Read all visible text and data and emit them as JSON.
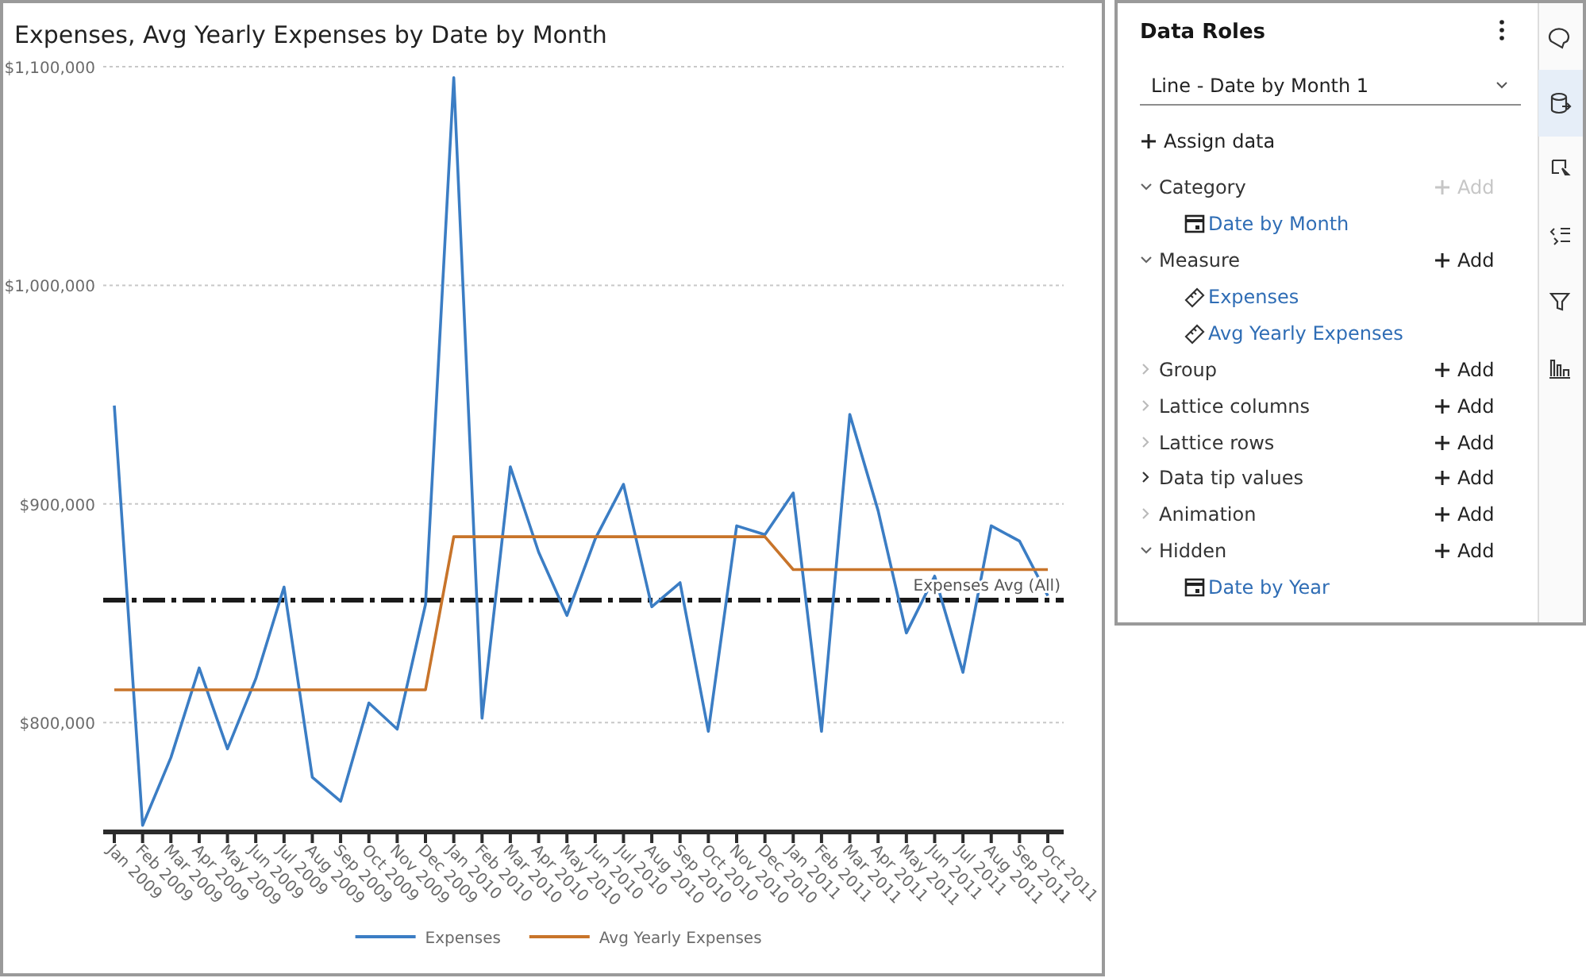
{
  "chart_data": [
    {
      "type": "line",
      "title": "Expenses, Avg Yearly Expenses by Date by Month",
      "categories": [
        "Jan 2009",
        "Feb 2009",
        "Mar 2009",
        "Apr 2009",
        "May 2009",
        "Jun 2009",
        "Jul 2009",
        "Aug 2009",
        "Sep 2009",
        "Oct 2009",
        "Nov 2009",
        "Dec 2009",
        "Jan 2010",
        "Feb 2010",
        "Mar 2010",
        "Apr 2010",
        "May 2010",
        "Jun 2010",
        "Jul 2010",
        "Aug 2010",
        "Sep 2010",
        "Oct 2010",
        "Nov 2010",
        "Dec 2010",
        "Jan 2011",
        "Feb 2011",
        "Mar 2011",
        "Apr 2011",
        "May 2011",
        "Jun 2011",
        "Jul 2011",
        "Aug 2011",
        "Sep 2011",
        "Oct 2011"
      ],
      "series": [
        {
          "name": "Expenses",
          "color": "#3b7dc4",
          "values": [
            945000,
            753000,
            784000,
            825000,
            788000,
            820000,
            862000,
            775000,
            764000,
            809000,
            797000,
            854000,
            1095000,
            802000,
            917000,
            878000,
            849000,
            884000,
            909000,
            853000,
            864000,
            796000,
            890000,
            886000,
            905000,
            796000,
            941000,
            897000,
            841000,
            867000,
            823000,
            890000,
            883000,
            858000
          ]
        },
        {
          "name": "Avg Yearly Expenses",
          "color": "#c8742a",
          "values": [
            815000,
            815000,
            815000,
            815000,
            815000,
            815000,
            815000,
            815000,
            815000,
            815000,
            815000,
            815000,
            885000,
            885000,
            885000,
            885000,
            885000,
            885000,
            885000,
            885000,
            885000,
            885000,
            885000,
            885000,
            870000,
            870000,
            870000,
            870000,
            870000,
            870000,
            870000,
            870000,
            870000,
            870000
          ]
        }
      ],
      "ylim": [
        750000,
        1100000
      ],
      "yticks": [
        {
          "value": 800000,
          "label": "$800,000"
        },
        {
          "value": 900000,
          "label": "$900,000"
        },
        {
          "value": 1000000,
          "label": "$1,000,000"
        },
        {
          "value": 1100000,
          "label": "$1,100,000"
        }
      ],
      "ref_lines": [
        {
          "axis": "y",
          "value": 856000,
          "label": "Expenses Avg (All)",
          "color": "#1a1a1a",
          "line_style": "dashed"
        }
      ],
      "grid": "y",
      "legend": "bottom"
    },
    {
      "type": "other",
      "title": "Data Roles",
      "annotations": [
        "Line - Date by Month 1",
        "Assign data",
        "Category",
        "Add",
        "Date by Month",
        "Measure",
        "Add",
        "Expenses",
        "Avg Yearly Expenses",
        "Group",
        "Add",
        "Lattice columns",
        "Add",
        "Lattice rows",
        "Add",
        "Data tip values",
        "Add",
        "Animation",
        "Add",
        "Hidden",
        "Add",
        "Date by Year"
      ]
    }
  ]
}
